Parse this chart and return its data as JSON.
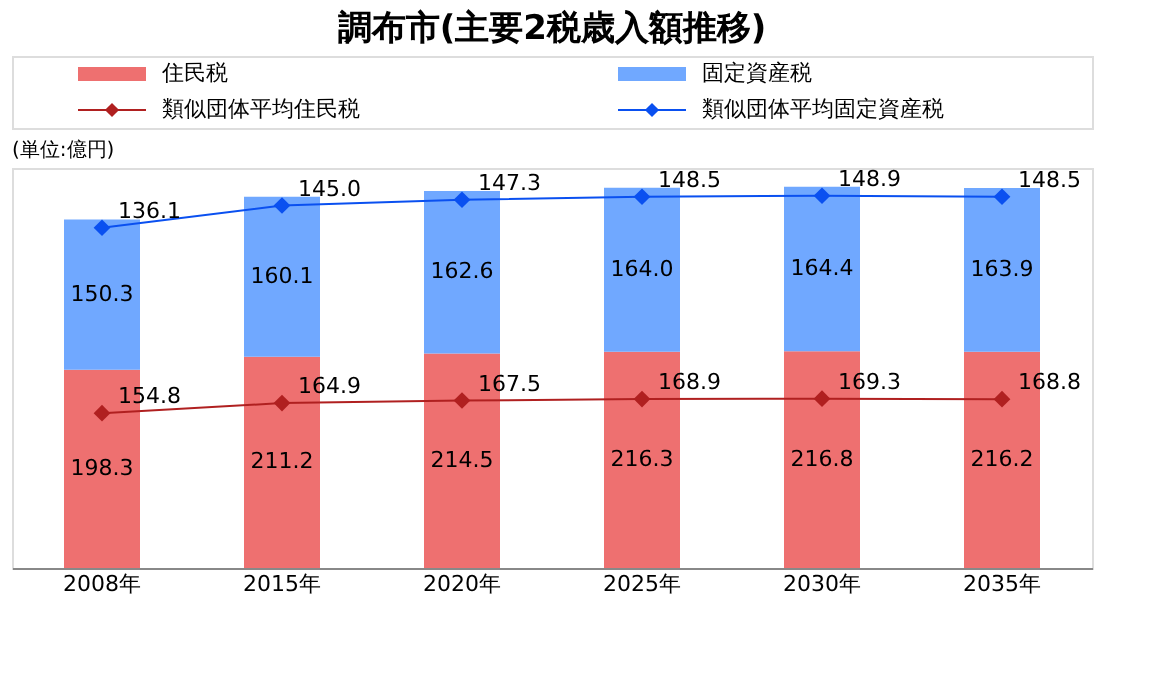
{
  "chart_data": {
    "type": "bar",
    "title": "調布市(主要2税歳入額推移)",
    "annotations": [
      "(単位:億円)"
    ],
    "categories": [
      "2008年",
      "2015年",
      "2020年",
      "2025年",
      "2030年",
      "2035年"
    ],
    "stacked": true,
    "legend": "top",
    "grid": false,
    "marker": "diamond",
    "line_style": "solid",
    "series": [
      {
        "name": "住民税",
        "color": "#ee7070",
        "values": [
          198.3,
          211.2,
          214.5,
          216.3,
          216.8,
          216.2
        ],
        "value_labels": [
          "198.3",
          "211.2",
          "214.5",
          "216.3",
          "216.8",
          "216.2"
        ]
      },
      {
        "name": "固定資産税",
        "color": "#70a8ff",
        "values": [
          150.3,
          160.1,
          162.6,
          164.0,
          164.4,
          163.9
        ],
        "value_labels": [
          "150.3",
          "160.1",
          "162.6",
          "164.0",
          "164.4",
          "163.9"
        ]
      },
      {
        "name": "類似団体平均住民税",
        "type": "line",
        "color": "#b02020",
        "values": [
          154.8,
          164.9,
          167.5,
          168.9,
          169.3,
          168.8
        ],
        "value_labels": [
          "154.8",
          "164.9",
          "167.5",
          "168.9",
          "169.3",
          "168.8"
        ]
      },
      {
        "name": "類似団体平均固定資産税",
        "type": "line",
        "axis": "y2",
        "color": "#0a50f0",
        "values": [
          136.1,
          145.0,
          147.3,
          148.5,
          148.9,
          148.5
        ],
        "value_labels": [
          "136.1",
          "145.0",
          "147.3",
          "148.5",
          "148.9",
          "148.5"
        ]
      }
    ]
  }
}
